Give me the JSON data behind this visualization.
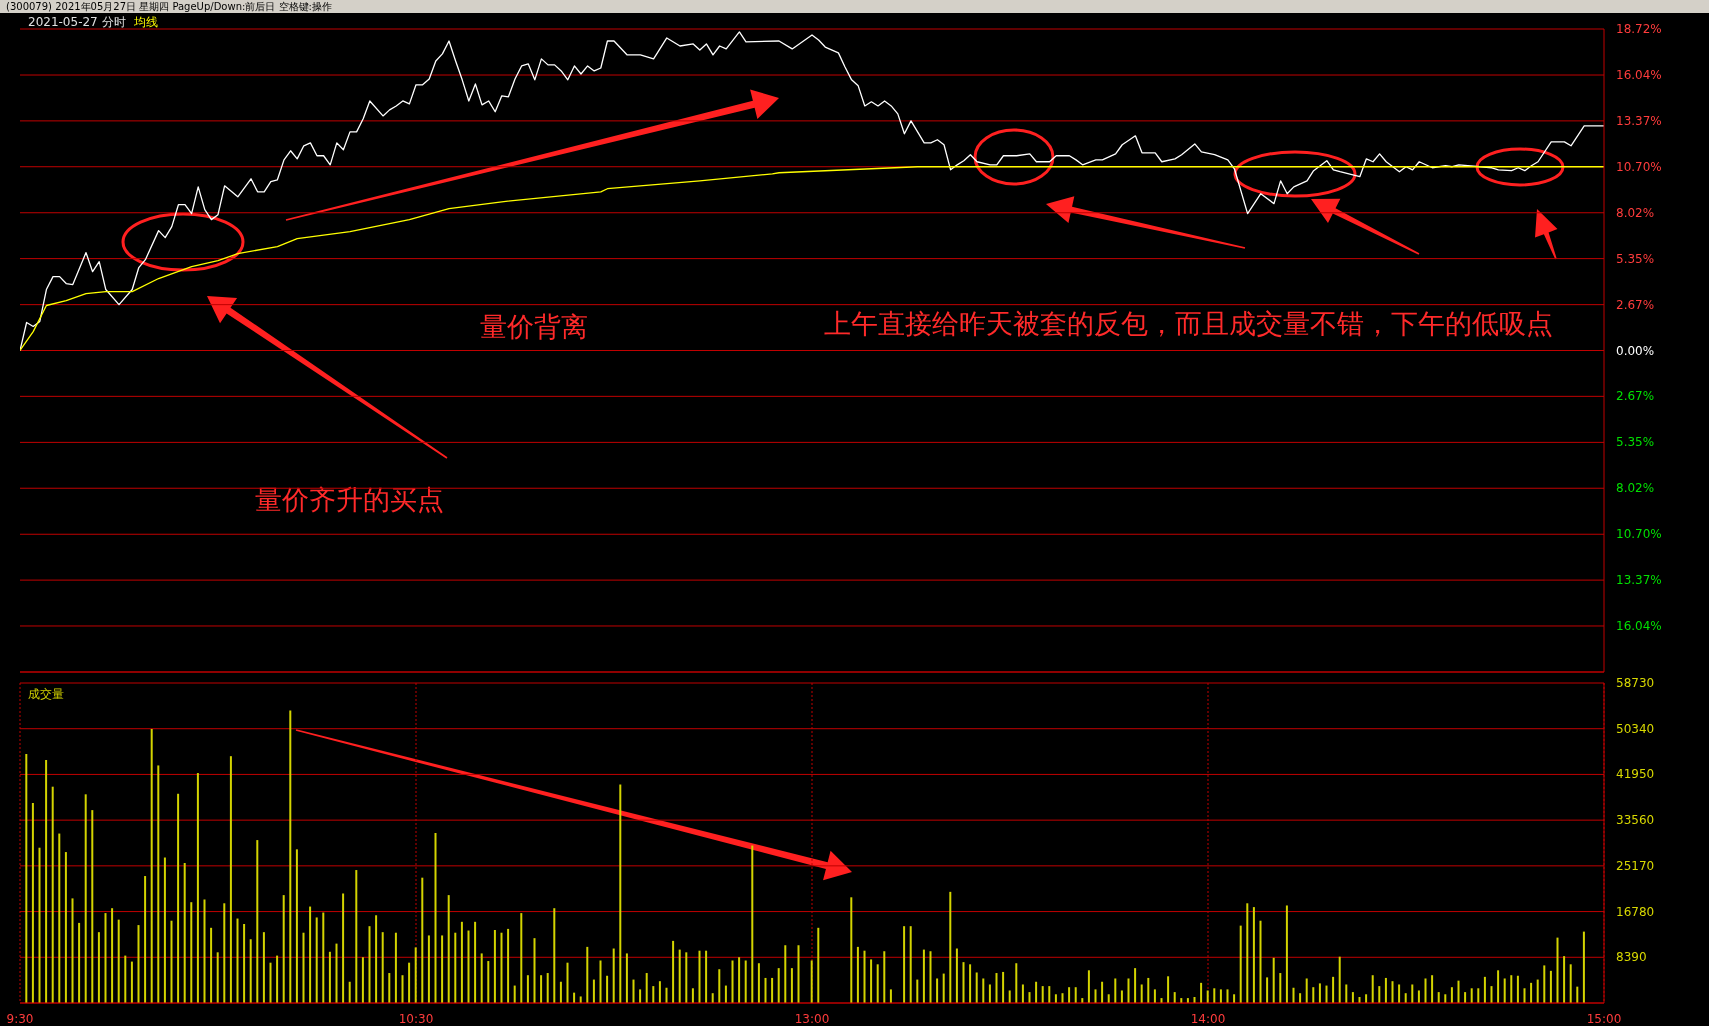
{
  "chart_data": [
    {
      "type": "line",
      "title": "2021-05-27 分时",
      "subtitle": "(300079) 2021年05月27日 星期四 PageUp/Down:前后日 空格键:操作",
      "annotations": [
        "量价背离",
        "量价齐升的买点",
        "上午直接给昨天被套的反包，而且成交量不错，下午的低吸点"
      ],
      "categories": [
        null,
        null,
        null,
        null,
        null,
        null,
        null,
        null,
        null,
        null,
        null,
        null,
        null,
        null,
        null,
        null,
        null,
        null,
        null,
        null,
        null,
        null,
        null,
        null,
        null,
        null,
        null,
        null,
        null,
        null,
        null,
        null,
        null,
        null,
        null,
        null,
        null,
        null,
        null,
        null,
        null,
        null,
        null,
        null,
        null,
        null,
        null,
        null,
        null,
        null,
        null,
        null,
        null,
        null,
        null,
        null,
        null,
        null,
        null,
        null,
        null,
        null,
        null,
        null,
        null,
        null,
        null,
        null,
        null,
        null,
        null,
        null,
        null,
        null,
        null,
        null,
        null,
        null,
        null,
        null,
        null,
        null,
        null,
        null,
        null,
        null,
        null,
        null,
        null,
        null,
        null,
        null,
        null,
        null,
        null,
        null,
        null,
        null,
        null,
        null,
        null,
        null,
        null,
        null,
        null,
        null,
        null,
        null,
        null,
        null,
        null,
        null,
        null,
        null,
        null,
        null,
        null,
        null,
        null,
        null,
        null,
        null,
        null,
        null,
        null,
        null,
        null,
        null,
        null,
        null,
        null,
        null,
        null,
        null,
        null,
        null,
        null,
        null,
        null,
        null,
        null,
        null,
        null,
        null,
        null,
        null,
        null,
        null,
        null,
        null,
        null,
        null,
        null,
        null,
        null,
        null,
        null,
        null,
        null,
        null,
        null,
        null,
        null,
        null,
        null,
        null,
        null,
        null,
        null,
        null,
        null,
        null,
        null,
        null,
        null,
        null,
        null,
        null,
        null,
        null,
        null,
        null,
        null,
        null,
        null,
        null,
        null,
        null,
        null,
        null,
        null,
        null,
        null,
        null,
        null,
        null,
        null,
        null,
        null,
        null,
        null,
        null,
        null,
        null,
        null,
        null,
        null,
        null,
        null,
        null,
        null,
        null,
        null,
        null,
        null,
        null,
        null,
        null,
        null,
        null,
        null,
        null,
        null,
        null,
        null,
        null,
        null,
        null,
        null,
        null,
        null,
        null,
        null,
        null,
        null,
        null,
        null,
        null,
        null,
        null,
        null
      ],
      "series": [
        {
          "color": "#ffffff",
          "values": [
            0,
            1.63,
            1.4,
            1.69,
            3.55,
            4.3,
            4.3,
            3.9,
            3.84,
            null,
            5.7,
            4.59,
            5.17,
            3.55,
            null,
            2.67,
            null,
            3.55,
            4.83,
            5.29,
            null,
            6.98,
            6.57,
            7.21,
            8.49,
            8.49,
            7.97,
            9.53,
            8.2,
            7.62,
            7.91,
            9.59,
            null,
            8.95,
            null,
            10.0,
            9.24,
            9.24,
            9.83,
            9.94,
            11.1,
            11.63,
            11.16,
            11.92,
            12.09,
            11.34,
            11.34,
            10.81,
            12.09,
            11.69,
            12.73,
            12.73,
            13.49,
            14.53,
            null,
            13.66,
            14.01,
            14.24,
            14.53,
            14.36,
            15.47,
            15.47,
            15.81,
            16.86,
            17.27,
            18.02,
            16.86,
            15.76,
            14.53,
            15.52,
            14.3,
            14.53,
            13.9,
            14.83,
            14.77,
            15.81,
            16.57,
            16.69,
            15.76,
            16.98,
            16.63,
            16.63,
            16.28,
            15.76,
            16.57,
            16.1,
            16.57,
            16.28,
            16.45,
            18.02,
            18.02,
            null,
            17.21,
            null,
            17.21,
            null,
            16.98,
            null,
            18.2,
            null,
            17.73,
            null,
            17.85,
            17.5,
            17.85,
            17.21,
            17.73,
            17.56,
            null,
            18.55,
            17.97,
            null,
            null,
            null,
            null,
            18.02,
            null,
            17.56,
            null,
            null,
            18.37,
            18.08,
            17.67,
            null,
            17.33,
            16.51,
            15.76,
            15.41,
            14.24,
            14.48,
            14.24,
            14.53,
            14.24,
            13.78,
            12.62,
            13.37,
            null,
            12.09,
            12.09,
            12.27,
            11.98,
            10.52,
            10.81,
            11.05,
            11.4,
            10.99,
            null,
            10.81,
            10.81,
            11.34,
            null,
            11.34,
            null,
            11.45,
            10.99,
            null,
            10.99,
            11.34,
            null,
            11.34,
            11.1,
            10.81,
            null,
            11.1,
            11.1,
            null,
            11.45,
            11.98,
            null,
            12.5,
            11.51,
            null,
            11.51,
            10.99,
            null,
            11.16,
            11.4,
            null,
            12.03,
            11.57,
            null,
            11.4,
            null,
            11.1,
            10.58,
            null,
            7.97,
            null,
            9.13,
            null,
            8.55,
            9.88,
            9.13,
            9.53,
            null,
            9.88,
            10.47,
            null,
            11.05,
            10.52,
            10.41,
            null,
            null,
            10.12,
            11.16,
            10.99,
            11.45,
            10.99,
            null,
            10.41,
            10.7,
            10.52,
            10.99,
            null,
            10.64,
            null,
            10.76,
            10.7,
            10.81,
            null,
            null,
            null,
            null,
            10.64,
            10.52,
            null,
            10.47,
            10.64,
            10.47,
            10.76,
            10.99,
            null,
            12.15,
            null,
            12.15,
            11.92,
            null,
            13.08,
            null,
            null,
            13.08
          ]
        },
        {
          "name": "均线",
          "color": "#ffff00",
          "values": [
            0,
            null,
            1.1,
            null,
            2.62,
            null,
            null,
            2.91,
            null,
            null,
            3.31,
            null,
            null,
            3.43,
            null,
            null,
            null,
            3.43,
            null,
            null,
            null,
            4.19,
            null,
            null,
            null,
            null,
            4.88,
            null,
            null,
            null,
            5.23,
            null,
            null,
            5.64,
            null,
            null,
            null,
            null,
            null,
            6.05,
            null,
            null,
            6.51,
            null,
            null,
            null,
            null,
            null,
            null,
            null,
            6.92,
            null,
            null,
            null,
            null,
            null,
            null,
            null,
            null,
            7.62,
            null,
            null,
            null,
            null,
            null,
            8.26,
            null,
            null,
            null,
            null,
            null,
            null,
            null,
            8.66,
            null,
            null,
            null,
            null,
            null,
            null,
            null,
            null,
            null,
            null,
            null,
            null,
            null,
            null,
            9.24,
            9.42,
            null,
            null,
            null,
            null,
            null,
            null,
            null,
            null,
            null,
            null,
            null,
            null,
            null,
            9.88,
            null,
            null,
            null,
            null,
            null,
            null,
            null,
            null,
            null,
            null,
            10.29,
            10.35,
            null,
            null,
            null,
            null,
            null,
            null,
            null,
            null,
            null,
            null,
            null,
            null,
            null,
            null,
            null,
            null,
            null,
            null,
            null,
            null,
            10.7,
            null,
            null,
            null,
            null,
            null,
            null,
            null,
            null,
            null,
            null,
            null,
            null,
            null,
            null,
            null,
            null,
            null,
            null,
            null,
            null,
            null,
            null,
            null,
            null,
            null,
            null,
            null,
            null,
            null,
            null,
            null,
            null,
            null,
            null,
            null,
            null,
            null,
            null,
            null,
            null,
            null,
            null,
            null,
            null,
            null,
            null,
            null,
            null,
            null,
            null,
            null,
            null,
            null,
            null,
            null,
            null,
            null,
            null,
            null,
            null,
            null,
            null,
            null,
            null,
            null,
            null,
            null,
            null,
            null,
            null,
            null,
            null,
            null,
            null,
            null,
            null,
            null,
            null,
            null,
            null,
            null,
            null,
            null,
            null,
            null,
            null,
            null,
            null,
            null,
            null,
            null,
            null,
            null,
            null,
            null,
            null,
            null,
            null,
            null,
            null,
            null,
            null,
            null,
            10.7
          ]
        }
      ],
      "ylim": [
        -18.72,
        18.72
      ],
      "yticks": [
        {
          "value": 18.72,
          "label": "18.72%"
        },
        {
          "value": 16.04,
          "label": "16.04%"
        },
        {
          "value": 13.37,
          "label": "13.37%"
        },
        {
          "value": 10.7,
          "label": "10.70%"
        },
        {
          "value": 8.02,
          "label": "8.02%"
        },
        {
          "value": 5.35,
          "label": "5.35%"
        },
        {
          "value": 2.67,
          "label": "2.67%"
        },
        {
          "value": 0,
          "label": "0.00%"
        },
        {
          "value": -2.67,
          "label": "2.67%"
        },
        {
          "value": -5.35,
          "label": "5.35%"
        },
        {
          "value": -8.02,
          "label": "8.02%"
        },
        {
          "value": -10.7,
          "label": "10.70%"
        },
        {
          "value": -13.37,
          "label": "13.37%"
        },
        {
          "value": -16.04,
          "label": "16.04%"
        }
      ],
      "tick_labels": "y",
      "grid": true
    },
    {
      "type": "bar",
      "categories": [
        "9:30",
        null,
        null,
        null,
        null,
        null,
        null,
        null,
        null,
        null,
        null,
        null,
        null,
        null,
        null,
        null,
        null,
        null,
        null,
        null,
        null,
        null,
        null,
        null,
        null,
        null,
        null,
        null,
        null,
        null,
        null,
        null,
        null,
        null,
        null,
        null,
        null,
        null,
        null,
        null,
        null,
        null,
        null,
        null,
        null,
        null,
        null,
        null,
        null,
        null,
        null,
        null,
        null,
        null,
        null,
        null,
        null,
        null,
        null,
        null,
        "10:30",
        null,
        null,
        null,
        null,
        null,
        null,
        null,
        null,
        null,
        null,
        null,
        null,
        null,
        null,
        null,
        null,
        null,
        null,
        null,
        null,
        null,
        null,
        null,
        null,
        null,
        null,
        null,
        null,
        null,
        null,
        null,
        null,
        null,
        null,
        null,
        null,
        null,
        null,
        null,
        null,
        null,
        null,
        null,
        null,
        null,
        null,
        null,
        null,
        null,
        null,
        null,
        null,
        null,
        null,
        null,
        null,
        null,
        null,
        null,
        "13:00",
        null,
        null,
        null,
        null,
        null,
        null,
        null,
        null,
        null,
        null,
        null,
        null,
        null,
        null,
        null,
        null,
        null,
        null,
        null,
        null,
        null,
        null,
        null,
        null,
        null,
        null,
        null,
        null,
        null,
        null,
        null,
        null,
        null,
        null,
        null,
        null,
        null,
        null,
        null,
        null,
        null,
        null,
        null,
        null,
        null,
        null,
        null,
        null,
        null,
        null,
        null,
        null,
        null,
        null,
        null,
        null,
        null,
        null,
        null,
        "14:00",
        null,
        null,
        null,
        null,
        null,
        null,
        null,
        null,
        null,
        null,
        null,
        null,
        null,
        null,
        null,
        null,
        null,
        null,
        null,
        null,
        null,
        null,
        null,
        null,
        null,
        null,
        null,
        null,
        null,
        null,
        null,
        null,
        null,
        null,
        null,
        null,
        null,
        null,
        null,
        null,
        null,
        null,
        null,
        null,
        null,
        null,
        null,
        null,
        null,
        null,
        null,
        null,
        null,
        null,
        null,
        null,
        null,
        null,
        null,
        "15:00"
      ],
      "series": [
        {
          "name": "成交量",
          "color": "#d4d400",
          "values": [
            null,
            45700,
            36700,
            28500,
            44600,
            39700,
            31100,
            27700,
            19200,
            14700,
            38300,
            35400,
            13000,
            16500,
            17400,
            15300,
            8700,
            7600,
            14300,
            23300,
            50300,
            43600,
            26700,
            15100,
            38400,
            25700,
            18500,
            42200,
            19000,
            13800,
            9300,
            18300,
            45300,
            15500,
            14500,
            11700,
            29900,
            13000,
            7400,
            8700,
            19800,
            53700,
            28200,
            12900,
            17700,
            15700,
            16600,
            9400,
            10900,
            20100,
            3900,
            24400,
            8400,
            14100,
            16100,
            13000,
            5500,
            12900,
            5100,
            7400,
            10200,
            23000,
            12400,
            31200,
            12400,
            19800,
            12900,
            14900,
            13300,
            14900,
            9100,
            7700,
            13400,
            12900,
            13600,
            3200,
            16500,
            5100,
            11900,
            5100,
            5500,
            17400,
            3900,
            7400,
            1900,
            1200,
            10300,
            4300,
            7800,
            5000,
            10000,
            40100,
            9100,
            4300,
            2500,
            5500,
            3100,
            4000,
            2800,
            11400,
            9800,
            9300,
            2700,
            9600,
            9600,
            1800,
            6200,
            3200,
            7800,
            8400,
            7800,
            28900,
            7300,
            4600,
            4600,
            6400,
            10600,
            6400,
            10600,
            null,
            7800,
            13800,
            null,
            null,
            null,
            null,
            19400,
            10300,
            9600,
            8000,
            7100,
            9500,
            2500,
            null,
            14100,
            14100,
            4300,
            9800,
            9500,
            4500,
            5400,
            20400,
            10000,
            7500,
            7100,
            5600,
            4500,
            3400,
            5500,
            5700,
            2300,
            7300,
            3400,
            2000,
            3900,
            3100,
            3100,
            1600,
            1800,
            2900,
            2900,
            900,
            6000,
            2500,
            3900,
            1600,
            4500,
            2300,
            4500,
            6400,
            3400,
            4600,
            2500,
            900,
            4900,
            2000,
            900,
            900,
            1100,
            3700,
            2300,
            2700,
            2500,
            2500,
            1600,
            14200,
            18300,
            17600,
            15100,
            4700,
            8300,
            5500,
            17900,
            2800,
            1800,
            4500,
            2900,
            3600,
            3200,
            4800,
            8500,
            3400,
            2000,
            1100,
            1600,
            5100,
            3100,
            4600,
            4000,
            3400,
            1800,
            3400,
            2300,
            4500,
            5100,
            2000,
            1600,
            2900,
            4100,
            2000,
            2700,
            2700,
            4800,
            3100,
            6000,
            4500,
            5100,
            5000,
            2700,
            3700,
            4300,
            6900,
            5900,
            12000,
            8600,
            7100,
            3000,
            13100,
            null,
            null,
            null
          ]
        }
      ],
      "ylim": [
        0,
        58730
      ],
      "yticks": [
        8390,
        16780,
        25170,
        33560,
        41950,
        50340,
        58730
      ],
      "grid": true
    }
  ]
}
